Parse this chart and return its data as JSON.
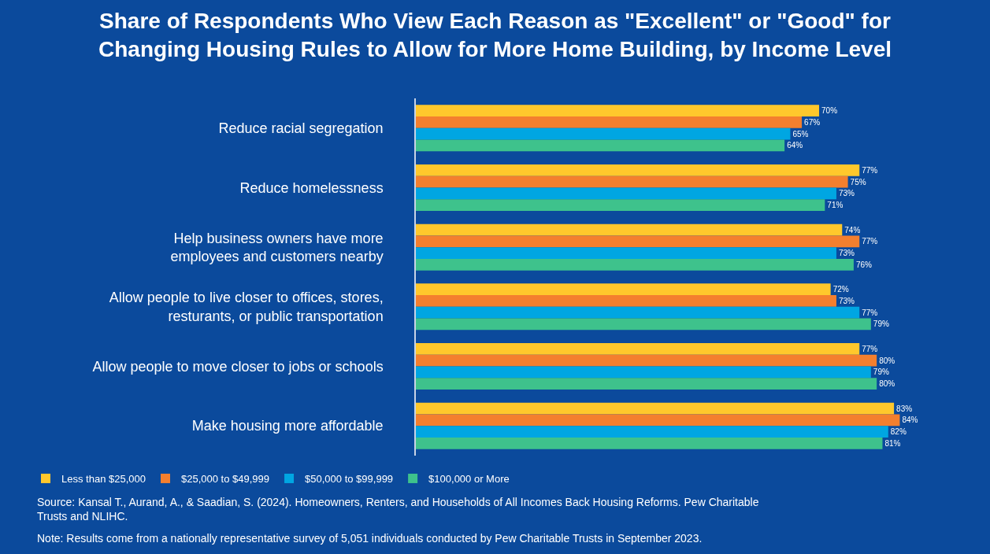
{
  "chart_data": {
    "type": "bar",
    "orientation": "horizontal",
    "title": "Share of Respondents Who View Each Reason as \"Excellent\" or \"Good\" for\nChanging Housing Rules to Allow for More Home Building, by Income Level",
    "categories": [
      "Reduce racial segregation",
      "Reduce homelessness",
      "Help business owners have more\nemployees and customers nearby",
      "Allow people to live closer to offices, stores,\nresturants, or public transportation",
      "Allow people to move closer to jobs or schools",
      "Make housing more affordable"
    ],
    "series": [
      {
        "name": "Less than $25,000",
        "color": "#ffc82c",
        "values": [
          70,
          77,
          74,
          72,
          77,
          83
        ],
        "value_labels": [
          "70%",
          "77%",
          "74%",
          "72%",
          "77%",
          "83%"
        ]
      },
      {
        "name": "$25,000 to $49,999",
        "color": "#f47f2e",
        "values": [
          67,
          75,
          77,
          73,
          80,
          84
        ],
        "value_labels": [
          "67%",
          "75%",
          "77%",
          "73%",
          "80%",
          "84%"
        ]
      },
      {
        "name": "$50,000 to $99,999",
        "color": "#00a6e2",
        "values": [
          65,
          73,
          73,
          77,
          79,
          82
        ],
        "value_labels": [
          "65%",
          "73%",
          "73%",
          "77%",
          "79%",
          "82%"
        ]
      },
      {
        "name": "$100,000 or More",
        "color": "#3ec28c",
        "values": [
          64,
          71,
          76,
          79,
          80,
          81
        ],
        "value_labels": [
          "64%",
          "71%",
          "76%",
          "79%",
          "80%",
          "81%"
        ]
      }
    ],
    "grid": false,
    "legend": "bottom left",
    "annotations": [
      "Source: Kansal T., Aurand, A., & Saadian, S. (2024). Homeowners, Renters, and Households of All Incomes Back Housing Reforms. Pew Charitable\nTrusts and NLIHC.",
      "Note: Results come from a nationally representative survey of 5,051 individuals conducted by Pew Charitable Trusts in September 2023."
    ]
  }
}
